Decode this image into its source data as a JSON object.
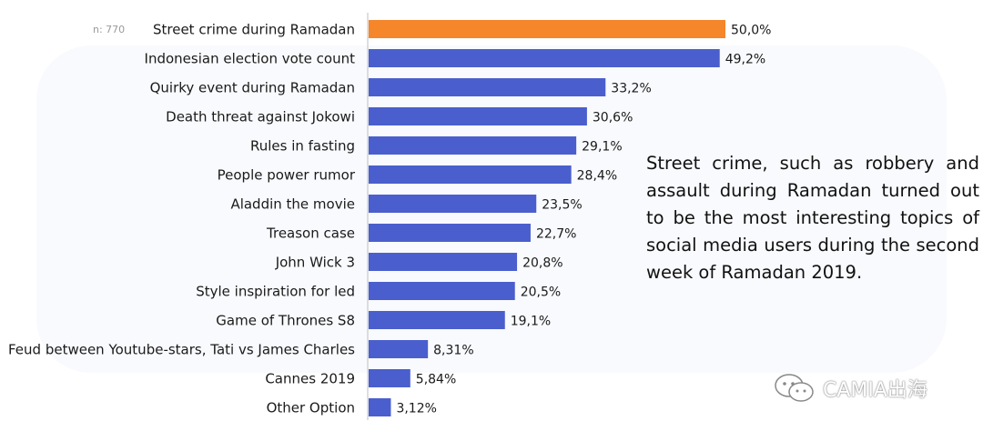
{
  "n_label": "n: 770",
  "note_text": "Street crime, such as robbery and assault during Ramadan turned out to be the most interesting topics of social media users during the second week of Ramadan 2019.",
  "brand_name": "CAMIA出海",
  "colors": {
    "highlight": "#f5862a",
    "bar": "#4a5fcd",
    "axis": "#bdbdbd"
  },
  "chart_data": {
    "type": "bar",
    "orientation": "horizontal",
    "xlim": [
      0,
      50
    ],
    "categories": [
      "Street crime during Ramadan",
      "Indonesian election vote count",
      "Quirky event during Ramadan",
      "Death threat against Jokowi",
      "Rules in fasting",
      "People power rumor",
      "Aladdin the movie",
      "Treason case",
      "John Wick 3",
      "Style inspiration for led",
      "Game of Thrones S8",
      "Feud between Youtube-stars, Tati vs James Charles",
      "Cannes 2019",
      "Other Option"
    ],
    "values": [
      50.0,
      49.2,
      33.2,
      30.6,
      29.1,
      28.4,
      23.5,
      22.7,
      20.8,
      20.5,
      19.1,
      8.31,
      5.84,
      3.12
    ],
    "value_labels": [
      "50,0%",
      "49,2%",
      "33,2%",
      "30,6%",
      "29,1%",
      "28,4%",
      "23,5%",
      "22,7%",
      "20,8%",
      "20,5%",
      "19,1%",
      "8,31%",
      "5,84%",
      "3,12%"
    ],
    "highlight_index": 0
  }
}
